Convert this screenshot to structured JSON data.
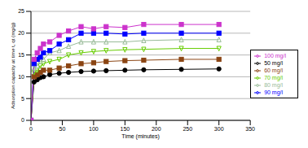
{
  "chart_data": {
    "type": "line",
    "x_label": "Time (minutes)",
    "y_label": "Adsorption capacity at time t, qt (mg/g)",
    "x": [
      0,
      5,
      10,
      15,
      20,
      30,
      45,
      60,
      80,
      100,
      120,
      150,
      180,
      240,
      300
    ],
    "xlim": [
      0,
      350
    ],
    "xticks": [
      0,
      50,
      100,
      150,
      200,
      250,
      300,
      350
    ],
    "ylim": [
      0,
      25
    ],
    "yticks": [
      0,
      5,
      10,
      15,
      20,
      25
    ],
    "grid": true,
    "legend": "right",
    "series": [
      {
        "name": "50 mg/l",
        "color": "#000000",
        "marker": "circle",
        "values": [
          0,
          8.8,
          9.3,
          9.8,
          10,
          10.5,
          10.8,
          11,
          11.2,
          11.3,
          11.4,
          11.5,
          11.6,
          11.7,
          11.8
        ]
      },
      {
        "name": "60 mg/l",
        "color": "#8b4513",
        "marker": "square",
        "values": [
          0,
          10,
          10.5,
          11,
          11.5,
          11.5,
          12,
          12.5,
          13,
          13.2,
          13.5,
          13.7,
          13.8,
          14,
          14
        ]
      },
      {
        "name": "70 mg/l",
        "color": "#66cc00",
        "marker": "triangle_down",
        "values": [
          0,
          11,
          11.5,
          12.5,
          13,
          13.5,
          14,
          15,
          15.5,
          15.8,
          16,
          16.2,
          16.3,
          16.5,
          16.5
        ]
      },
      {
        "name": "80 mg/l",
        "color": "#99bb99",
        "marker": "triangle",
        "values": [
          0,
          12,
          12.5,
          13.5,
          14,
          15.5,
          16,
          17,
          18,
          18,
          18,
          18,
          18.3,
          18.5,
          18.5
        ]
      },
      {
        "name": "90 mg/l",
        "color": "#0000ff",
        "marker": "square",
        "values": [
          0,
          13,
          14,
          14.5,
          15.5,
          16,
          17.5,
          18.5,
          20,
          20,
          20,
          19.8,
          20,
          20,
          20
        ]
      },
      {
        "name": "100 mg/l",
        "color": "#cc33cc",
        "marker": "square",
        "values": [
          0,
          14,
          15.5,
          16.5,
          17.5,
          18,
          19.5,
          20.5,
          21.5,
          21,
          21.5,
          21.3,
          22,
          22,
          22
        ]
      }
    ]
  }
}
